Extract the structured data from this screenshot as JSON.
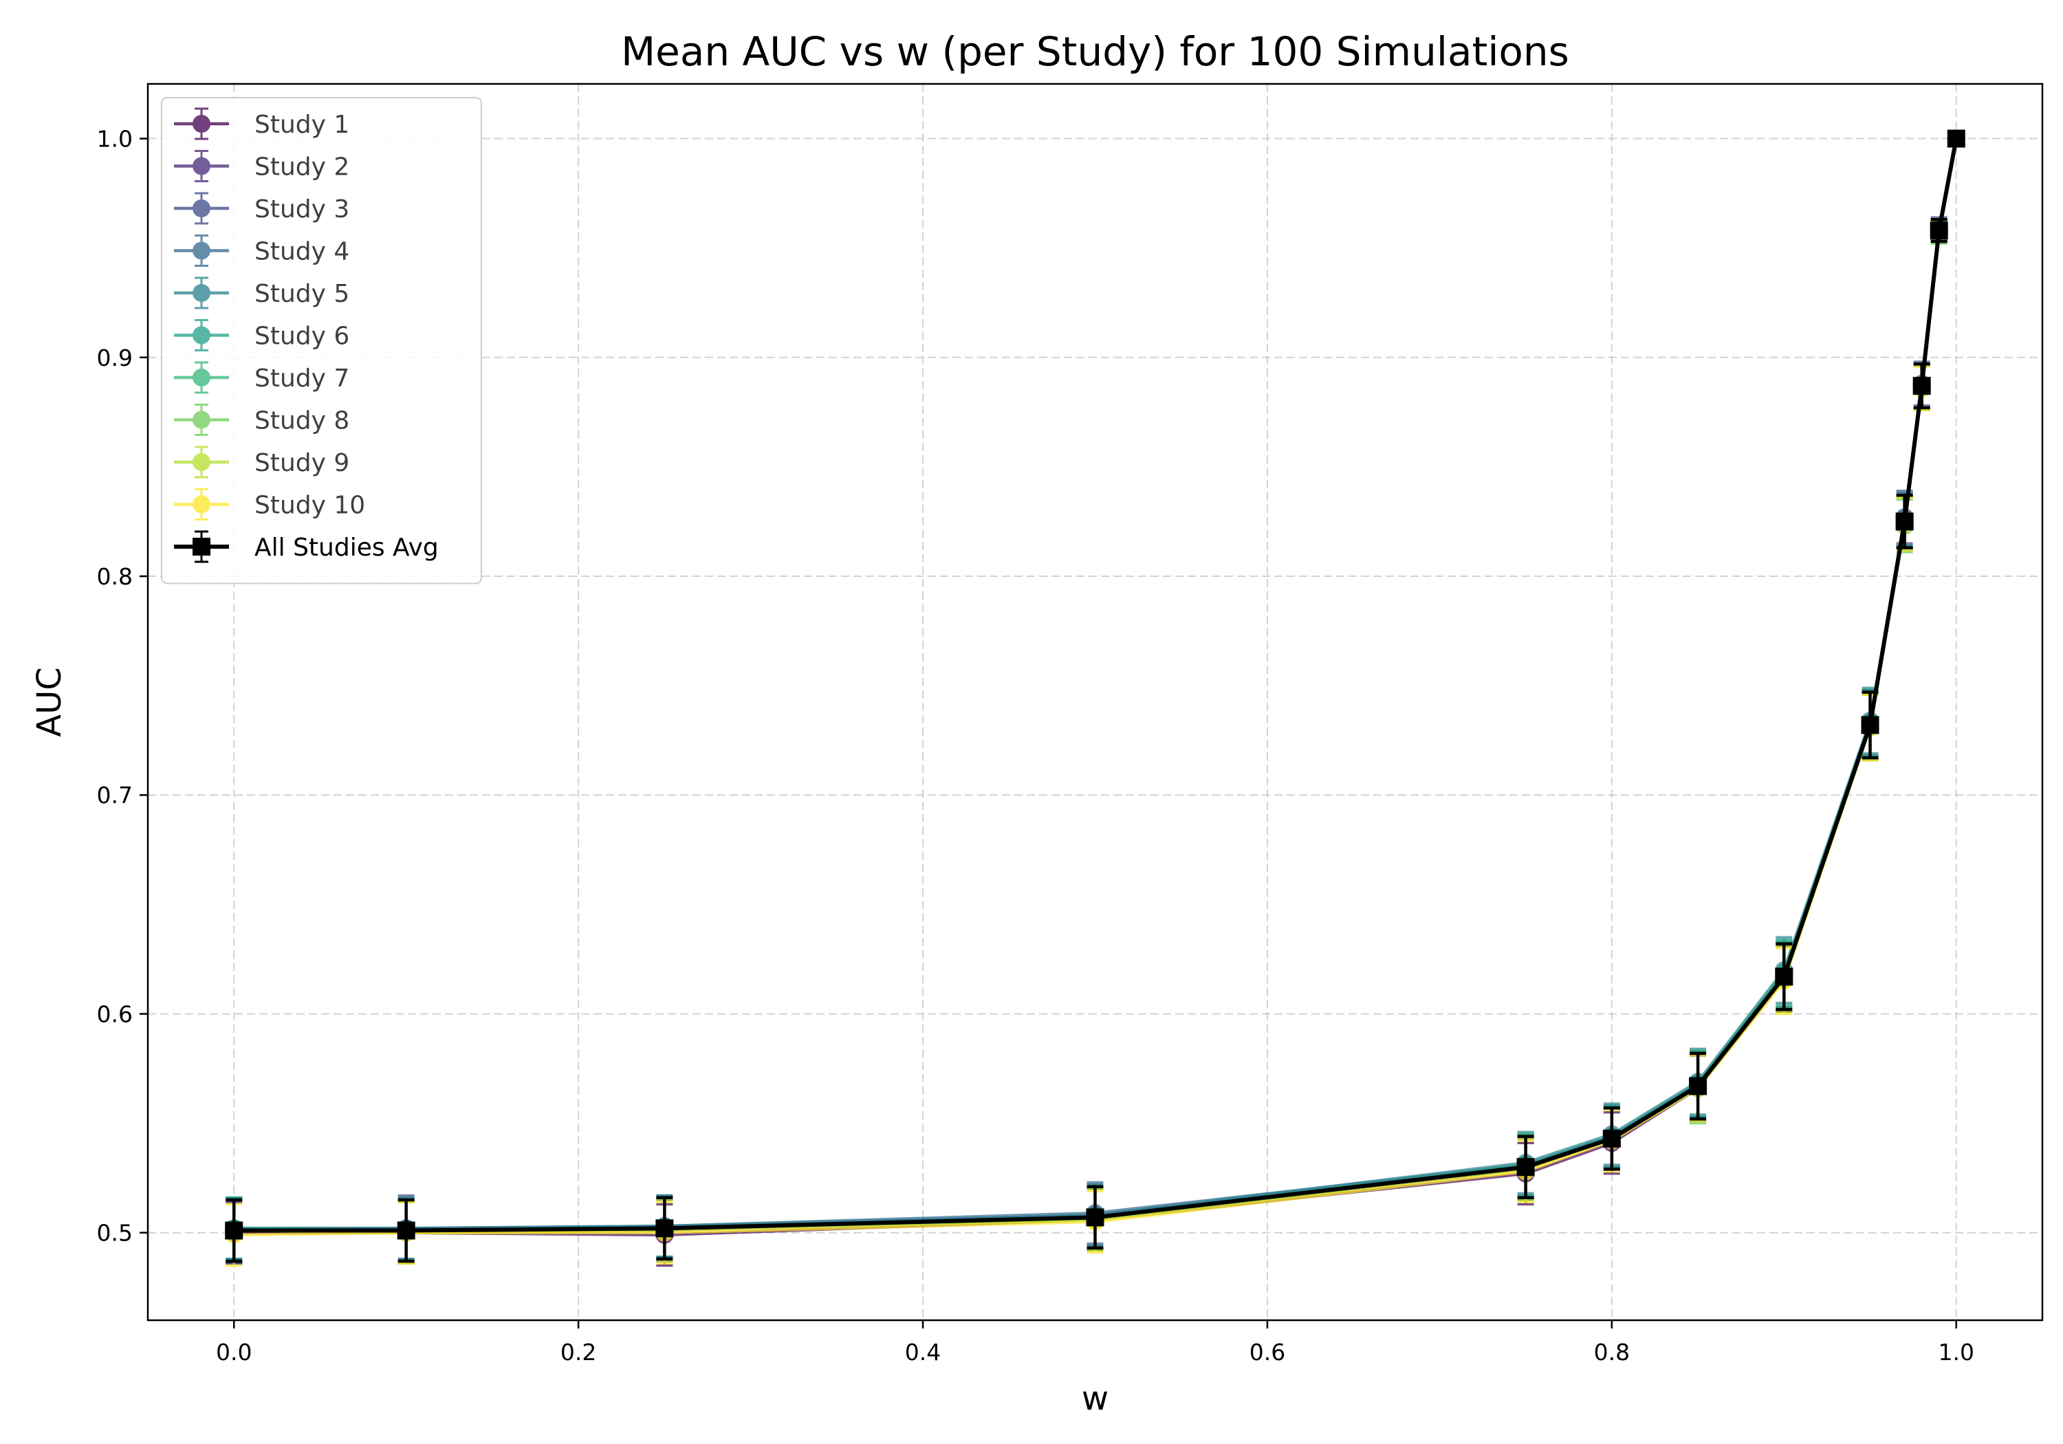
{
  "chart_data": {
    "type": "line",
    "title": "Mean AUC vs w (per Study) for 100 Simulations",
    "xlabel": "w",
    "ylabel": "AUC",
    "xlim": [
      -0.05,
      1.05
    ],
    "ylim": [
      0.46,
      1.025
    ],
    "xticks": [
      0.0,
      0.2,
      0.4,
      0.6,
      0.8,
      1.0
    ],
    "xtick_labels": [
      "0.0",
      "0.2",
      "0.4",
      "0.6",
      "0.8",
      "1.0"
    ],
    "yticks": [
      0.5,
      0.6,
      0.7,
      0.8,
      0.9,
      1.0
    ],
    "ytick_labels": [
      "0.5",
      "0.6",
      "0.7",
      "0.8",
      "0.9",
      "1.0"
    ],
    "grid": true,
    "legend_position": "upper-left",
    "x": [
      0.0,
      0.1,
      0.25,
      0.5,
      0.75,
      0.8,
      0.85,
      0.9,
      0.95,
      0.97,
      0.98,
      0.99,
      1.0
    ],
    "series": [
      {
        "name": "Study 1",
        "color": "#440154",
        "marker": "circle",
        "values": [
          0.5,
          0.5,
          0.499,
          0.506,
          0.527,
          0.541,
          0.566,
          0.616,
          0.731,
          0.825,
          0.887,
          0.958,
          1.0
        ],
        "errors": [
          0.014,
          0.014,
          0.014,
          0.014,
          0.014,
          0.014,
          0.015,
          0.015,
          0.015,
          0.012,
          0.01,
          0.005,
          0.0
        ]
      },
      {
        "name": "Study 2",
        "color": "#482878",
        "marker": "circle",
        "values": [
          0.501,
          0.501,
          0.501,
          0.507,
          0.529,
          0.543,
          0.567,
          0.617,
          0.732,
          0.825,
          0.887,
          0.958,
          1.0
        ],
        "errors": [
          0.014,
          0.014,
          0.014,
          0.014,
          0.014,
          0.014,
          0.015,
          0.015,
          0.015,
          0.012,
          0.01,
          0.005,
          0.0
        ]
      },
      {
        "name": "Study 3",
        "color": "#3e4989",
        "marker": "circle",
        "values": [
          0.501,
          0.502,
          0.502,
          0.508,
          0.53,
          0.544,
          0.568,
          0.618,
          0.733,
          0.827,
          0.888,
          0.959,
          1.0
        ],
        "errors": [
          0.015,
          0.015,
          0.014,
          0.014,
          0.014,
          0.014,
          0.015,
          0.015,
          0.015,
          0.012,
          0.01,
          0.005,
          0.0
        ]
      },
      {
        "name": "Study 4",
        "color": "#31688e",
        "marker": "circle",
        "values": [
          0.502,
          0.502,
          0.503,
          0.509,
          0.531,
          0.544,
          0.568,
          0.618,
          0.733,
          0.826,
          0.887,
          0.958,
          1.0
        ],
        "errors": [
          0.014,
          0.014,
          0.014,
          0.014,
          0.014,
          0.014,
          0.015,
          0.015,
          0.015,
          0.012,
          0.01,
          0.005,
          0.0
        ]
      },
      {
        "name": "Study 5",
        "color": "#26828e",
        "marker": "circle",
        "values": [
          0.502,
          0.502,
          0.503,
          0.508,
          0.532,
          0.545,
          0.569,
          0.62,
          0.734,
          0.826,
          0.887,
          0.958,
          1.0
        ],
        "errors": [
          0.014,
          0.014,
          0.014,
          0.014,
          0.014,
          0.014,
          0.015,
          0.015,
          0.015,
          0.012,
          0.01,
          0.005,
          0.0
        ]
      },
      {
        "name": "Study 6",
        "color": "#1f9e89",
        "marker": "circle",
        "values": [
          0.502,
          0.501,
          0.502,
          0.507,
          0.531,
          0.544,
          0.568,
          0.619,
          0.733,
          0.825,
          0.887,
          0.958,
          1.0
        ],
        "errors": [
          0.014,
          0.014,
          0.014,
          0.014,
          0.014,
          0.014,
          0.015,
          0.015,
          0.015,
          0.012,
          0.01,
          0.005,
          0.0
        ]
      },
      {
        "name": "Study 7",
        "color": "#35b779",
        "marker": "circle",
        "values": [
          0.501,
          0.501,
          0.502,
          0.507,
          0.53,
          0.543,
          0.567,
          0.618,
          0.732,
          0.824,
          0.886,
          0.958,
          1.0
        ],
        "errors": [
          0.014,
          0.014,
          0.014,
          0.014,
          0.015,
          0.014,
          0.016,
          0.015,
          0.015,
          0.012,
          0.01,
          0.005,
          0.0
        ]
      },
      {
        "name": "Study 8",
        "color": "#6ece58",
        "marker": "circle",
        "values": [
          0.501,
          0.501,
          0.502,
          0.506,
          0.53,
          0.543,
          0.566,
          0.617,
          0.731,
          0.823,
          0.886,
          0.957,
          1.0
        ],
        "errors": [
          0.014,
          0.014,
          0.014,
          0.014,
          0.014,
          0.014,
          0.016,
          0.015,
          0.015,
          0.012,
          0.01,
          0.005,
          0.0
        ]
      },
      {
        "name": "Study 9",
        "color": "#b5de2b",
        "marker": "circle",
        "values": [
          0.501,
          0.5,
          0.501,
          0.506,
          0.529,
          0.543,
          0.567,
          0.616,
          0.731,
          0.824,
          0.886,
          0.958,
          1.0
        ],
        "errors": [
          0.014,
          0.014,
          0.014,
          0.014,
          0.014,
          0.014,
          0.015,
          0.015,
          0.015,
          0.012,
          0.01,
          0.005,
          0.0
        ]
      },
      {
        "name": "Study 10",
        "color": "#fde725",
        "marker": "circle",
        "values": [
          0.499,
          0.5,
          0.5,
          0.505,
          0.528,
          0.542,
          0.566,
          0.615,
          0.731,
          0.824,
          0.886,
          0.958,
          1.0
        ],
        "errors": [
          0.014,
          0.014,
          0.014,
          0.014,
          0.014,
          0.014,
          0.015,
          0.015,
          0.015,
          0.012,
          0.01,
          0.005,
          0.0
        ]
      },
      {
        "name": "All Studies Avg",
        "color": "#000000",
        "marker": "square",
        "values": [
          0.501,
          0.501,
          0.502,
          0.507,
          0.53,
          0.543,
          0.567,
          0.617,
          0.732,
          0.825,
          0.887,
          0.958,
          1.0
        ],
        "errors": [
          0.014,
          0.014,
          0.014,
          0.014,
          0.014,
          0.014,
          0.015,
          0.015,
          0.015,
          0.012,
          0.01,
          0.005,
          0.0
        ]
      }
    ]
  }
}
